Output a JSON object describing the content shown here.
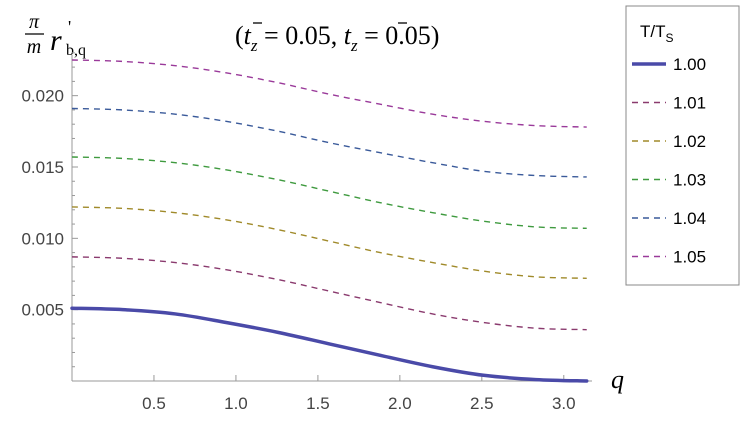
{
  "chart_data": {
    "type": "line",
    "title": {
      "lparen": "(",
      "t1": "t",
      "s1": "z",
      "v1": " = 0.05, ",
      "t2": "t",
      "s2": "z",
      "v2": " = 0.05",
      "rparen": ")"
    },
    "ylabel": {
      "pi": "π",
      "m": "m",
      "r": "r",
      "prime": "'",
      "sub": "b,q"
    },
    "xlabel": "q",
    "xlim": [
      0,
      3.14159
    ],
    "ylim": [
      0,
      0.0232
    ],
    "xticks": [
      {
        "value": 0.5,
        "label": "0.5"
      },
      {
        "value": 1.0,
        "label": "1.0"
      },
      {
        "value": 1.5,
        "label": "1.5"
      },
      {
        "value": 2.0,
        "label": "2.0"
      },
      {
        "value": 2.5,
        "label": "2.5"
      },
      {
        "value": 3.0,
        "label": "3.0"
      }
    ],
    "yticks": [
      {
        "value": 0.005,
        "label": "0.005"
      },
      {
        "value": 0.01,
        "label": "0.010"
      },
      {
        "value": 0.015,
        "label": "0.015"
      },
      {
        "value": 0.02,
        "label": "0.020"
      }
    ],
    "x": [
      0,
      0.31,
      0.63,
      0.94,
      1.26,
      1.57,
      1.88,
      2.2,
      2.51,
      2.83,
      3.14
    ],
    "legend": {
      "title": "T/T",
      "title_sub": "S",
      "placement": "right"
    },
    "series": [
      {
        "name": "1.00",
        "color": "#4a4aa8",
        "dashed": false,
        "values": [
          0.0051,
          0.005,
          0.0047,
          0.0041,
          0.0034,
          0.0026,
          0.0018,
          0.001,
          0.0004,
          0.0001,
          0.0
        ]
      },
      {
        "name": "1.01",
        "color": "#8a3a6e",
        "dashed": true,
        "values": [
          0.0087,
          0.0086,
          0.0083,
          0.0078,
          0.0071,
          0.0063,
          0.0055,
          0.0047,
          0.0041,
          0.0037,
          0.0036
        ]
      },
      {
        "name": "1.02",
        "color": "#a08a2a",
        "dashed": true,
        "values": [
          0.0122,
          0.0121,
          0.0118,
          0.0113,
          0.0106,
          0.0098,
          0.009,
          0.0083,
          0.0077,
          0.0073,
          0.0072
        ]
      },
      {
        "name": "1.03",
        "color": "#3f9a3f",
        "dashed": true,
        "values": [
          0.0157,
          0.0156,
          0.0153,
          0.0148,
          0.0141,
          0.0133,
          0.0125,
          0.0118,
          0.0112,
          0.0108,
          0.0107
        ]
      },
      {
        "name": "1.04",
        "color": "#3a5a9a",
        "dashed": true,
        "values": [
          0.0191,
          0.019,
          0.0187,
          0.0182,
          0.0175,
          0.0167,
          0.016,
          0.0153,
          0.0147,
          0.0144,
          0.0143
        ]
      },
      {
        "name": "1.05",
        "color": "#9a3a9a",
        "dashed": true,
        "values": [
          0.0225,
          0.0224,
          0.0221,
          0.0216,
          0.0209,
          0.0201,
          0.0194,
          0.0187,
          0.0182,
          0.0179,
          0.0178
        ]
      }
    ]
  }
}
